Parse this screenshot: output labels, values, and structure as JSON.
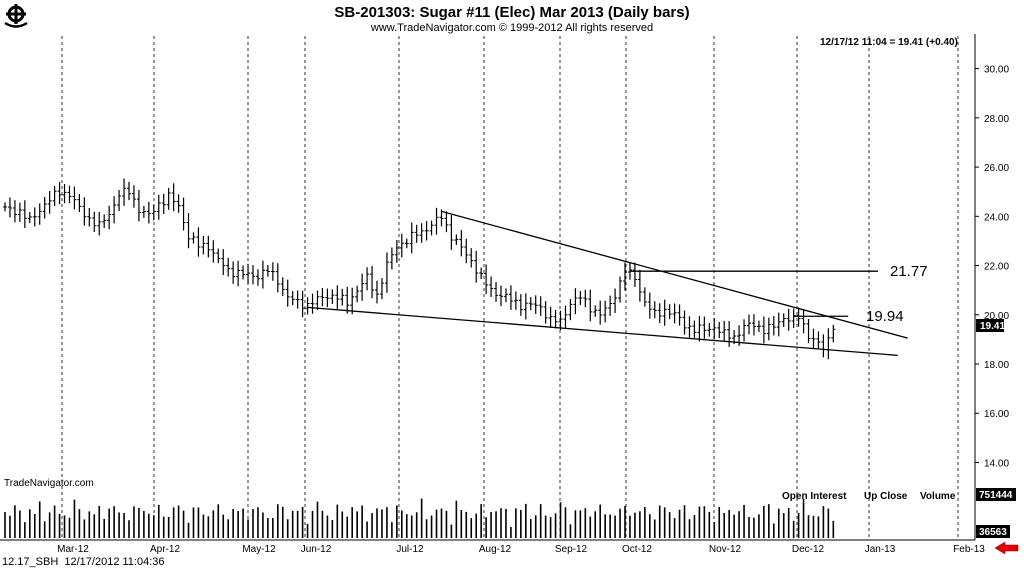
{
  "header": {
    "title": "SB-201303:  Sugar #11 (Elec) Mar 2013  (Daily bars)",
    "copyright": "www.TradeNavigator.com © 1999-2012 All rights reserved",
    "quote": "12/17/12 11:04 = 19.41 (+0.40)",
    "logo_icon": "ship-wheel-logo-icon"
  },
  "watermark": "TradeNavigator.com",
  "footer": {
    "symbol": "12.17_SBH",
    "datetime": "12/17/2012 11:04:36"
  },
  "volume_panel": {
    "labels": [
      "Open Interest",
      "Up Close",
      "Volume"
    ],
    "value_top": "751444",
    "value_bottom": "36563"
  },
  "chart_data": {
    "type": "ohlc",
    "y_ticks": [
      "30.00",
      "28.00",
      "26.00",
      "24.00",
      "22.00",
      "20.00",
      "18.00",
      "16.00",
      "14.00"
    ],
    "ylim": [
      12.8,
      31.0
    ],
    "last_price_label": "19.41",
    "months": [
      "Mar-12",
      "Apr-12",
      "May-12",
      "Jun-12",
      "Jul-12",
      "Aug-12",
      "Sep-12",
      "Oct-12",
      "Nov-12",
      "Dec-12",
      "Jan-13",
      "Feb-13"
    ],
    "close_path": [
      [
        0,
        24.3
      ],
      [
        3,
        24.2
      ],
      [
        5,
        23.8
      ],
      [
        8,
        24.5
      ],
      [
        11,
        25.0
      ],
      [
        13,
        24.9
      ],
      [
        15,
        24.3
      ],
      [
        17,
        23.9
      ],
      [
        19,
        23.6
      ],
      [
        21,
        24.1
      ],
      [
        23,
        24.9
      ],
      [
        25,
        25.0
      ],
      [
        27,
        24.3
      ],
      [
        29,
        24.0
      ],
      [
        31,
        24.5
      ],
      [
        33,
        24.8
      ],
      [
        35,
        24.4
      ],
      [
        37,
        23.2
      ],
      [
        39,
        22.8
      ],
      [
        41,
        22.8
      ],
      [
        43,
        22.2
      ],
      [
        45,
        21.8
      ],
      [
        47,
        21.7
      ],
      [
        49,
        21.6
      ],
      [
        51,
        21.6
      ],
      [
        53,
        21.8
      ],
      [
        55,
        21.4
      ],
      [
        57,
        20.7
      ],
      [
        59,
        20.5
      ],
      [
        61,
        20.4
      ],
      [
        63,
        20.6
      ],
      [
        65,
        20.8
      ],
      [
        67,
        20.7
      ],
      [
        69,
        20.5
      ],
      [
        71,
        21.0
      ],
      [
        73,
        21.5
      ],
      [
        75,
        20.8
      ],
      [
        77,
        22.0
      ],
      [
        79,
        22.8
      ],
      [
        81,
        23.0
      ],
      [
        83,
        23.3
      ],
      [
        85,
        23.5
      ],
      [
        87,
        23.8
      ],
      [
        88,
        24.0
      ],
      [
        90,
        23.2
      ],
      [
        92,
        22.7
      ],
      [
        94,
        22.2
      ],
      [
        96,
        21.5
      ],
      [
        98,
        21.0
      ],
      [
        100,
        20.8
      ],
      [
        102,
        20.6
      ],
      [
        104,
        20.4
      ],
      [
        106,
        20.4
      ],
      [
        108,
        20.3
      ],
      [
        110,
        19.8
      ],
      [
        112,
        19.7
      ],
      [
        114,
        20.5
      ],
      [
        116,
        20.7
      ],
      [
        118,
        20.3
      ],
      [
        120,
        20.0
      ],
      [
        122,
        20.4
      ],
      [
        124,
        21.3
      ],
      [
        125,
        21.8
      ],
      [
        127,
        21.5
      ],
      [
        129,
        20.5
      ],
      [
        131,
        20.0
      ],
      [
        133,
        20.2
      ],
      [
        135,
        20.0
      ],
      [
        137,
        19.6
      ],
      [
        139,
        19.4
      ],
      [
        141,
        19.4
      ],
      [
        143,
        19.5
      ],
      [
        145,
        19.2
      ],
      [
        147,
        19.1
      ],
      [
        149,
        19.5
      ],
      [
        151,
        19.6
      ],
      [
        153,
        19.4
      ],
      [
        155,
        19.5
      ],
      [
        157,
        19.9
      ],
      [
        159,
        19.8
      ],
      [
        160,
        19.9
      ],
      [
        162,
        19.2
      ],
      [
        164,
        18.8
      ],
      [
        165,
        18.6
      ],
      [
        167,
        19.41
      ]
    ],
    "trendlines": [
      {
        "from": [
          88,
          24.2
        ],
        "to": [
          182,
          19.05
        ]
      },
      {
        "from": [
          61,
          20.3
        ],
        "to": [
          180,
          18.35
        ]
      },
      {
        "from": [
          126,
          21.77
        ],
        "to": [
          176,
          21.77
        ]
      },
      {
        "from": [
          159,
          19.94
        ],
        "to": [
          170,
          19.94
        ]
      }
    ],
    "annotations": [
      {
        "value": "21.77",
        "text": "21.77"
      },
      {
        "value": "19.94",
        "text": "19.94"
      }
    ],
    "grid": "vertical-dashed"
  }
}
